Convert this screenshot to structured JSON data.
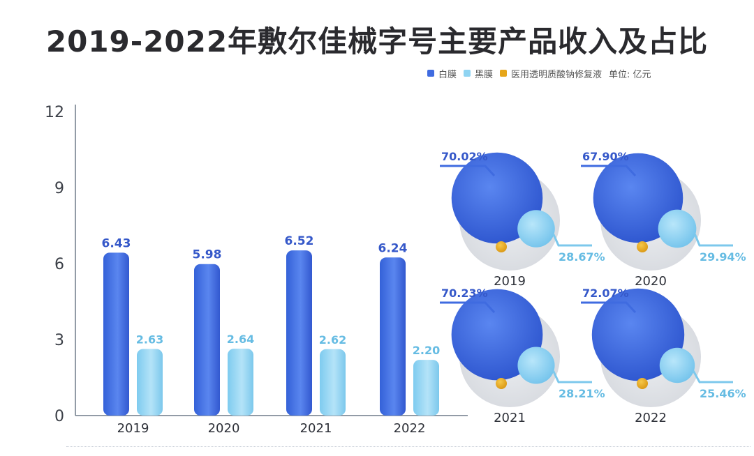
{
  "title": "2019-2022年敷尔佳械字号主要产品收入及占比",
  "legend": {
    "items": [
      {
        "label": "白膜",
        "color": "#3f6be0"
      },
      {
        "label": "黑膜",
        "color": "#8fd4f2"
      },
      {
        "label": "医用透明质酸钠修复液",
        "color": "#e6a61a"
      }
    ],
    "unit": "单位: 亿元"
  },
  "colors": {
    "primary": "#3f6be0",
    "secondary": "#8fd4f2",
    "accent": "#e6a61a",
    "circle_bg": "#e4e6ea"
  },
  "chart_data": [
    {
      "type": "bar",
      "categories": [
        "2019",
        "2020",
        "2021",
        "2022"
      ],
      "series": [
        {
          "name": "白膜",
          "values": [
            6.43,
            5.98,
            6.52,
            6.24
          ]
        },
        {
          "name": "黑膜",
          "values": [
            2.63,
            2.64,
            2.62,
            2.2
          ]
        }
      ],
      "value_labels": {
        "白膜": [
          "6.43",
          "5.98",
          "6.52",
          "6.24"
        ],
        "黑膜": [
          "2.63",
          "2.64",
          "2.62",
          "2.20"
        ]
      },
      "ylim": [
        0,
        12
      ],
      "yticks": [
        "0",
        "3",
        "6",
        "9",
        "12"
      ],
      "grid": false
    },
    {
      "type": "bubble",
      "panels": [
        {
          "year": "2019",
          "white_pct": "70.02%",
          "black_pct": "28.67%",
          "white_share": 70.02,
          "black_share": 28.67
        },
        {
          "year": "2020",
          "white_pct": "67.90%",
          "black_pct": "29.94%",
          "white_share": 67.9,
          "black_share": 29.94
        },
        {
          "year": "2021",
          "white_pct": "70.23%",
          "black_pct": "28.21%",
          "white_share": 70.23,
          "black_share": 28.21
        },
        {
          "year": "2022",
          "white_pct": "72.07%",
          "black_pct": "25.46%",
          "white_share": 72.07,
          "black_share": 25.46
        }
      ]
    }
  ]
}
